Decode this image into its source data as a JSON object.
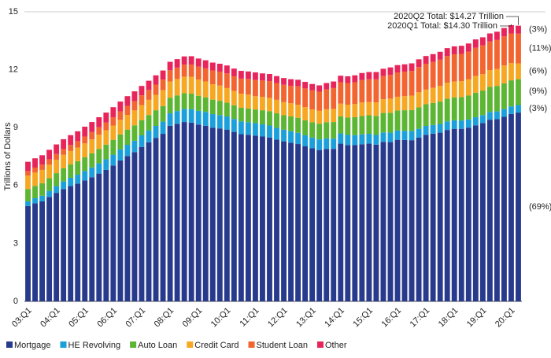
{
  "chart_data": {
    "type": "stacked_bar",
    "y_label": "Trillions of Dollars",
    "annotations": [
      "2020Q2 Total: $14.27 Trillion",
      "2020Q1 Total: $14.30 Trillion"
    ],
    "categories": [
      "03:Q1",
      null,
      null,
      null,
      "04:Q1",
      null,
      null,
      null,
      "05:Q1",
      null,
      null,
      null,
      "06:Q1",
      null,
      null,
      null,
      "07:Q1",
      null,
      null,
      null,
      "08:Q1",
      null,
      null,
      null,
      "09:Q1",
      null,
      null,
      null,
      "10:Q1",
      null,
      null,
      null,
      "11:Q1",
      null,
      null,
      null,
      "12:Q1",
      null,
      null,
      null,
      "13:Q1",
      null,
      null,
      null,
      "14:Q1",
      null,
      null,
      null,
      "15:Q1",
      null,
      null,
      null,
      "16:Q1",
      null,
      null,
      null,
      "17:Q1",
      null,
      null,
      null,
      "18:Q1",
      null,
      null,
      null,
      "19:Q1",
      null,
      null,
      null,
      "20:Q1",
      null
    ],
    "ylim": [
      0,
      15
    ],
    "yticks": [
      0,
      3,
      6,
      9,
      12,
      15
    ],
    "grid": false,
    "legend": "bottom",
    "series": [
      {
        "name": "Mortgage",
        "color": "#283a8c",
        "share_label": "(69%)",
        "values": [
          4.94,
          5.08,
          5.18,
          5.41,
          5.62,
          5.82,
          5.97,
          6.1,
          6.26,
          6.43,
          6.62,
          6.81,
          7.04,
          7.3,
          7.53,
          7.73,
          8.0,
          8.24,
          8.47,
          8.68,
          9.1,
          9.2,
          9.29,
          9.26,
          9.16,
          9.1,
          9.0,
          8.96,
          8.9,
          8.78,
          8.66,
          8.63,
          8.59,
          8.54,
          8.49,
          8.38,
          8.29,
          8.22,
          8.15,
          8.03,
          7.93,
          7.84,
          7.9,
          7.9,
          8.17,
          8.1,
          8.09,
          8.14,
          8.17,
          8.12,
          8.26,
          8.25,
          8.37,
          8.36,
          8.35,
          8.48,
          8.63,
          8.69,
          8.74,
          8.88,
          8.94,
          8.94,
          9.0,
          9.12,
          9.24,
          9.41,
          9.44,
          9.56,
          9.71,
          9.78
        ]
      },
      {
        "name": "HE Revolving",
        "color": "#1ba0dc",
        "share_label": "(3%)",
        "values": [
          0.24,
          0.26,
          0.29,
          0.31,
          0.35,
          0.39,
          0.43,
          0.46,
          0.49,
          0.51,
          0.53,
          0.55,
          0.56,
          0.57,
          0.58,
          0.59,
          0.6,
          0.61,
          0.62,
          0.63,
          0.64,
          0.66,
          0.68,
          0.7,
          0.71,
          0.71,
          0.7,
          0.69,
          0.68,
          0.67,
          0.66,
          0.65,
          0.64,
          0.63,
          0.62,
          0.61,
          0.6,
          0.59,
          0.58,
          0.57,
          0.56,
          0.55,
          0.54,
          0.53,
          0.53,
          0.52,
          0.52,
          0.51,
          0.51,
          0.5,
          0.49,
          0.49,
          0.48,
          0.47,
          0.47,
          0.46,
          0.46,
          0.45,
          0.45,
          0.44,
          0.44,
          0.43,
          0.42,
          0.42,
          0.41,
          0.4,
          0.4,
          0.4,
          0.39,
          0.39
        ]
      },
      {
        "name": "Auto Loan",
        "color": "#5cb533",
        "share_label": "(9%)",
        "values": [
          0.64,
          0.64,
          0.65,
          0.66,
          0.67,
          0.68,
          0.69,
          0.7,
          0.72,
          0.73,
          0.75,
          0.76,
          0.77,
          0.78,
          0.79,
          0.8,
          0.79,
          0.8,
          0.81,
          0.81,
          0.81,
          0.81,
          0.81,
          0.8,
          0.78,
          0.76,
          0.75,
          0.74,
          0.71,
          0.71,
          0.71,
          0.71,
          0.71,
          0.73,
          0.74,
          0.75,
          0.75,
          0.77,
          0.78,
          0.78,
          0.79,
          0.81,
          0.84,
          0.86,
          0.88,
          0.9,
          0.93,
          0.95,
          0.96,
          0.99,
          1.01,
          1.03,
          1.04,
          1.07,
          1.09,
          1.11,
          1.12,
          1.14,
          1.16,
          1.18,
          1.19,
          1.21,
          1.24,
          1.27,
          1.27,
          1.3,
          1.32,
          1.33,
          1.35,
          1.34
        ]
      },
      {
        "name": "Credit Card",
        "color": "#f7a823",
        "share_label": "(6%)",
        "values": [
          0.69,
          0.69,
          0.69,
          0.7,
          0.7,
          0.7,
          0.7,
          0.71,
          0.71,
          0.72,
          0.73,
          0.74,
          0.74,
          0.75,
          0.76,
          0.77,
          0.78,
          0.79,
          0.8,
          0.82,
          0.84,
          0.85,
          0.86,
          0.87,
          0.84,
          0.82,
          0.8,
          0.79,
          0.76,
          0.74,
          0.73,
          0.72,
          0.69,
          0.69,
          0.69,
          0.7,
          0.68,
          0.68,
          0.67,
          0.68,
          0.66,
          0.67,
          0.67,
          0.68,
          0.66,
          0.67,
          0.68,
          0.7,
          0.68,
          0.7,
          0.71,
          0.73,
          0.71,
          0.73,
          0.75,
          0.78,
          0.76,
          0.78,
          0.81,
          0.83,
          0.82,
          0.83,
          0.84,
          0.87,
          0.85,
          0.87,
          0.88,
          0.93,
          0.89,
          0.82
        ]
      },
      {
        "name": "Student Loan",
        "color": "#f26530",
        "share_label": "(11%)",
        "values": [
          0.24,
          0.26,
          0.27,
          0.28,
          0.29,
          0.3,
          0.31,
          0.33,
          0.36,
          0.38,
          0.39,
          0.4,
          0.43,
          0.44,
          0.46,
          0.48,
          0.5,
          0.51,
          0.53,
          0.55,
          0.58,
          0.59,
          0.62,
          0.64,
          0.67,
          0.68,
          0.71,
          0.72,
          0.76,
          0.76,
          0.78,
          0.81,
          0.84,
          0.85,
          0.87,
          0.87,
          0.9,
          0.91,
          0.96,
          0.97,
          0.99,
          0.99,
          1.03,
          1.08,
          1.11,
          1.12,
          1.13,
          1.16,
          1.19,
          1.19,
          1.2,
          1.23,
          1.26,
          1.26,
          1.28,
          1.31,
          1.34,
          1.34,
          1.36,
          1.38,
          1.41,
          1.41,
          1.44,
          1.46,
          1.49,
          1.48,
          1.5,
          1.51,
          1.54,
          1.54
        ]
      },
      {
        "name": "Other",
        "color": "#e8255a",
        "share_label": "(3%)",
        "values": [
          0.48,
          0.48,
          0.49,
          0.49,
          0.5,
          0.51,
          0.51,
          0.51,
          0.51,
          0.52,
          0.52,
          0.52,
          0.52,
          0.51,
          0.51,
          0.51,
          0.49,
          0.48,
          0.48,
          0.47,
          0.44,
          0.44,
          0.43,
          0.43,
          0.42,
          0.42,
          0.41,
          0.41,
          0.41,
          0.4,
          0.4,
          0.39,
          0.39,
          0.37,
          0.37,
          0.36,
          0.35,
          0.34,
          0.34,
          0.34,
          0.33,
          0.33,
          0.33,
          0.34,
          0.34,
          0.35,
          0.36,
          0.37,
          0.37,
          0.38,
          0.38,
          0.39,
          0.38,
          0.39,
          0.39,
          0.4,
          0.4,
          0.41,
          0.41,
          0.41,
          0.41,
          0.42,
          0.42,
          0.43,
          0.42,
          0.42,
          0.43,
          0.43,
          0.43,
          0.41
        ]
      }
    ]
  }
}
